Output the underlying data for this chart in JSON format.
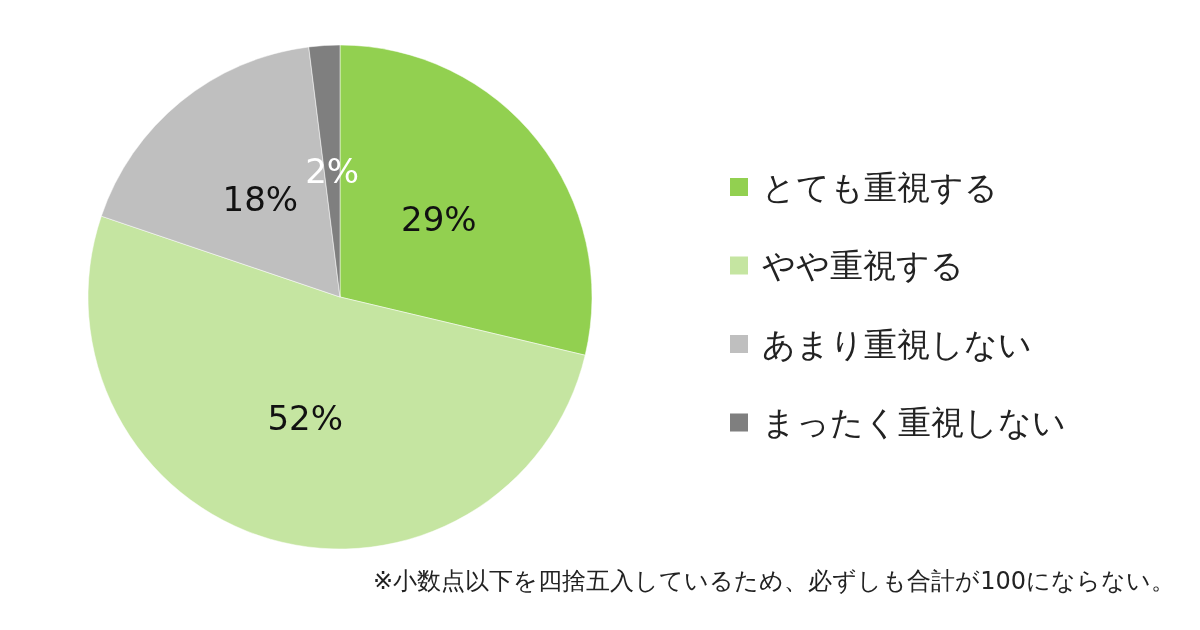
{
  "chart_data": {
    "type": "pie",
    "categories": [
      "とても重視する",
      "やや重視する",
      "あまり重視しない",
      "まったく重視しない"
    ],
    "values": [
      29,
      52,
      18,
      2
    ],
    "colors": [
      "#92d050",
      "#c5e5a1",
      "#bfbfbf",
      "#7f7f7f"
    ],
    "value_labels": [
      "29%",
      "52%",
      "18%",
      "2%"
    ],
    "legend": "right",
    "annotations": [
      "※小数点以下を四捨五入しているため、必ずしも合計が100にならない。"
    ]
  }
}
